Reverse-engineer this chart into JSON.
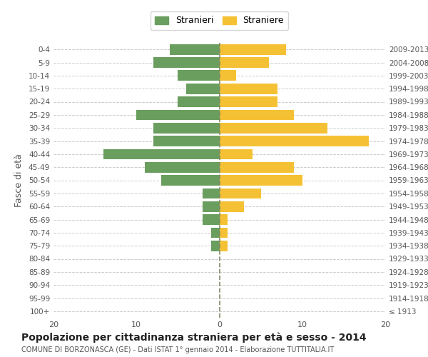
{
  "age_groups": [
    "100+",
    "95-99",
    "90-94",
    "85-89",
    "80-84",
    "75-79",
    "70-74",
    "65-69",
    "60-64",
    "55-59",
    "50-54",
    "45-49",
    "40-44",
    "35-39",
    "30-34",
    "25-29",
    "20-24",
    "15-19",
    "10-14",
    "5-9",
    "0-4"
  ],
  "birth_years": [
    "≤ 1913",
    "1914-1918",
    "1919-1923",
    "1924-1928",
    "1929-1933",
    "1934-1938",
    "1939-1943",
    "1944-1948",
    "1949-1953",
    "1954-1958",
    "1959-1963",
    "1964-1968",
    "1969-1973",
    "1974-1978",
    "1979-1983",
    "1984-1988",
    "1989-1993",
    "1994-1998",
    "1999-2003",
    "2004-2008",
    "2009-2013"
  ],
  "males": [
    0,
    0,
    0,
    0,
    0,
    1,
    1,
    2,
    2,
    2,
    7,
    9,
    14,
    8,
    8,
    10,
    5,
    4,
    5,
    8,
    6
  ],
  "females": [
    0,
    0,
    0,
    0,
    0,
    1,
    1,
    1,
    3,
    5,
    10,
    9,
    4,
    18,
    13,
    9,
    7,
    7,
    2,
    6,
    8
  ],
  "male_color": "#6a9e5f",
  "female_color": "#f5c134",
  "male_label": "Stranieri",
  "female_label": "Straniere",
  "title": "Popolazione per cittadinanza straniera per età e sesso - 2014",
  "subtitle": "COMUNE DI BORZONASCA (GE) - Dati ISTAT 1° gennaio 2014 - Elaborazione TUTTITALIA.IT",
  "ylabel_left": "Fasce di età",
  "xlim": 20,
  "background_color": "#ffffff",
  "grid_color": "#cccccc",
  "bar_height": 0.8
}
